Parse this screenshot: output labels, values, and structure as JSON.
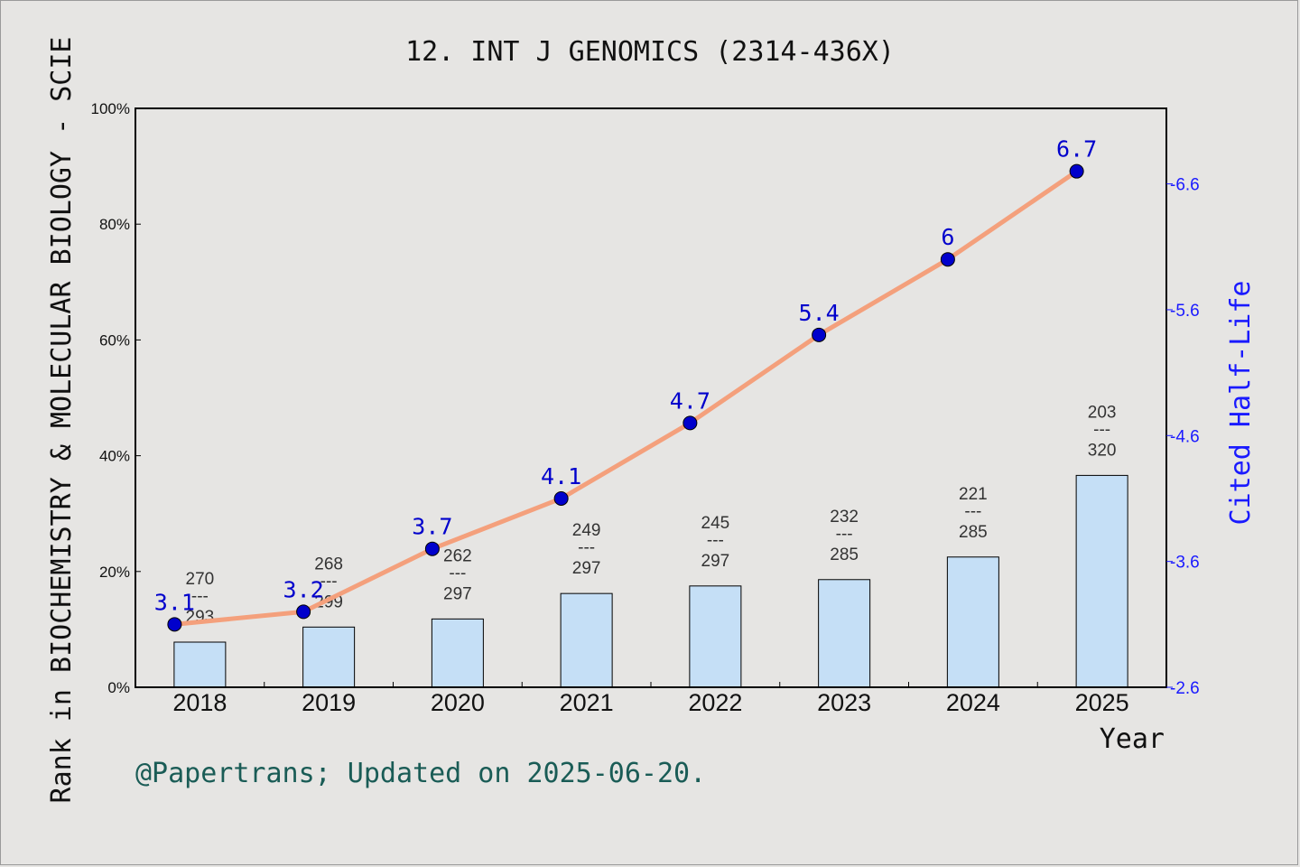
{
  "chart_data": {
    "type": "bar+line",
    "title": "12. INT J GENOMICS (2314-436X)",
    "xlabel": "Year",
    "ylabel": "Rank in BIOCHEMISTRY & MOLECULAR BIOLOGY - SCIE",
    "y2label": "Cited Half-Life",
    "footnote": "@Papertrans; Updated on 2025-06-20.",
    "categories": [
      "2018",
      "2019",
      "2020",
      "2021",
      "2022",
      "2023",
      "2024",
      "2025"
    ],
    "ylim": [
      0,
      100
    ],
    "yticks": [
      "0%",
      "20%",
      "40%",
      "60%",
      "80%",
      "100%"
    ],
    "y2lim": [
      2.6,
      7.2
    ],
    "y2ticks": [
      "2.6",
      "3.6",
      "4.6",
      "5.6",
      "6.6"
    ],
    "bars": {
      "rank": [
        270,
        268,
        262,
        249,
        245,
        232,
        221,
        203
      ],
      "total": [
        293,
        299,
        297,
        297,
        297,
        285,
        285,
        320
      ],
      "percent": [
        7.8,
        10.4,
        11.8,
        16.2,
        17.5,
        18.6,
        22.5,
        36.6
      ],
      "separator": "---",
      "color": "#c5dff6"
    },
    "line": {
      "labels": [
        "3.1",
        "3.2",
        "3.7",
        "4.1",
        "4.7",
        "5.4",
        "6",
        "6.7"
      ],
      "values": [
        3.1,
        3.2,
        3.7,
        4.1,
        4.7,
        5.4,
        6.0,
        6.7
      ],
      "color": "#f4a07c",
      "marker_color": "#0000cc"
    }
  }
}
